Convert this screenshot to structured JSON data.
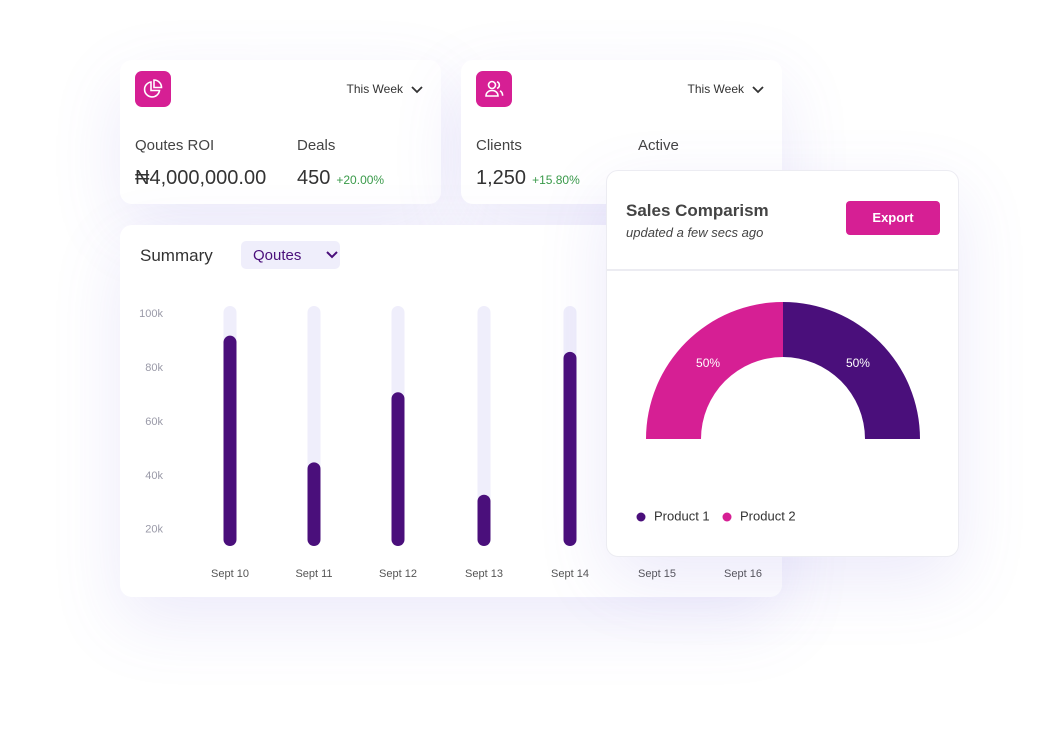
{
  "cards": [
    {
      "period": "This Week",
      "metrics": [
        {
          "label": "Qoutes ROI",
          "value": "₦4,000,000.00"
        },
        {
          "label": "Deals",
          "value": "450",
          "change": "+20.00%"
        }
      ]
    },
    {
      "period": "This Week",
      "metrics": [
        {
          "label": "Clients",
          "value": "1,250",
          "change": "+15.80%"
        },
        {
          "label": "Active"
        }
      ]
    }
  ],
  "chart_data": [
    {
      "type": "bar",
      "title": "Summary",
      "filter": "Qoutes",
      "color": "#4a0f7b",
      "track_color": "#efeefb",
      "categories": [
        "Sept 10",
        "Sept 11",
        "Sept 12",
        "Sept 13",
        "Sept 14",
        "Sept 15",
        "Sept 16"
      ],
      "values": [
        92000,
        45000,
        71000,
        33000,
        86000,
        null,
        null
      ],
      "ylim": [
        14000,
        103000
      ],
      "yticks": [
        {
          "value": 20000,
          "label": "20k"
        },
        {
          "value": 40000,
          "label": "40k"
        },
        {
          "value": 60000,
          "label": "60k"
        },
        {
          "value": 80000,
          "label": "80k"
        },
        {
          "value": 100000,
          "label": "100k"
        }
      ]
    },
    {
      "type": "pie",
      "title": "Sales Comparism",
      "subtitle": "updated a few secs ago",
      "button": "Export",
      "categories": [
        "Product 1",
        "Product 2"
      ],
      "values": [
        50,
        50
      ],
      "value_labels": [
        "50%",
        "50%"
      ],
      "colors": [
        "#4a0f7b",
        "#d61f94"
      ]
    }
  ]
}
